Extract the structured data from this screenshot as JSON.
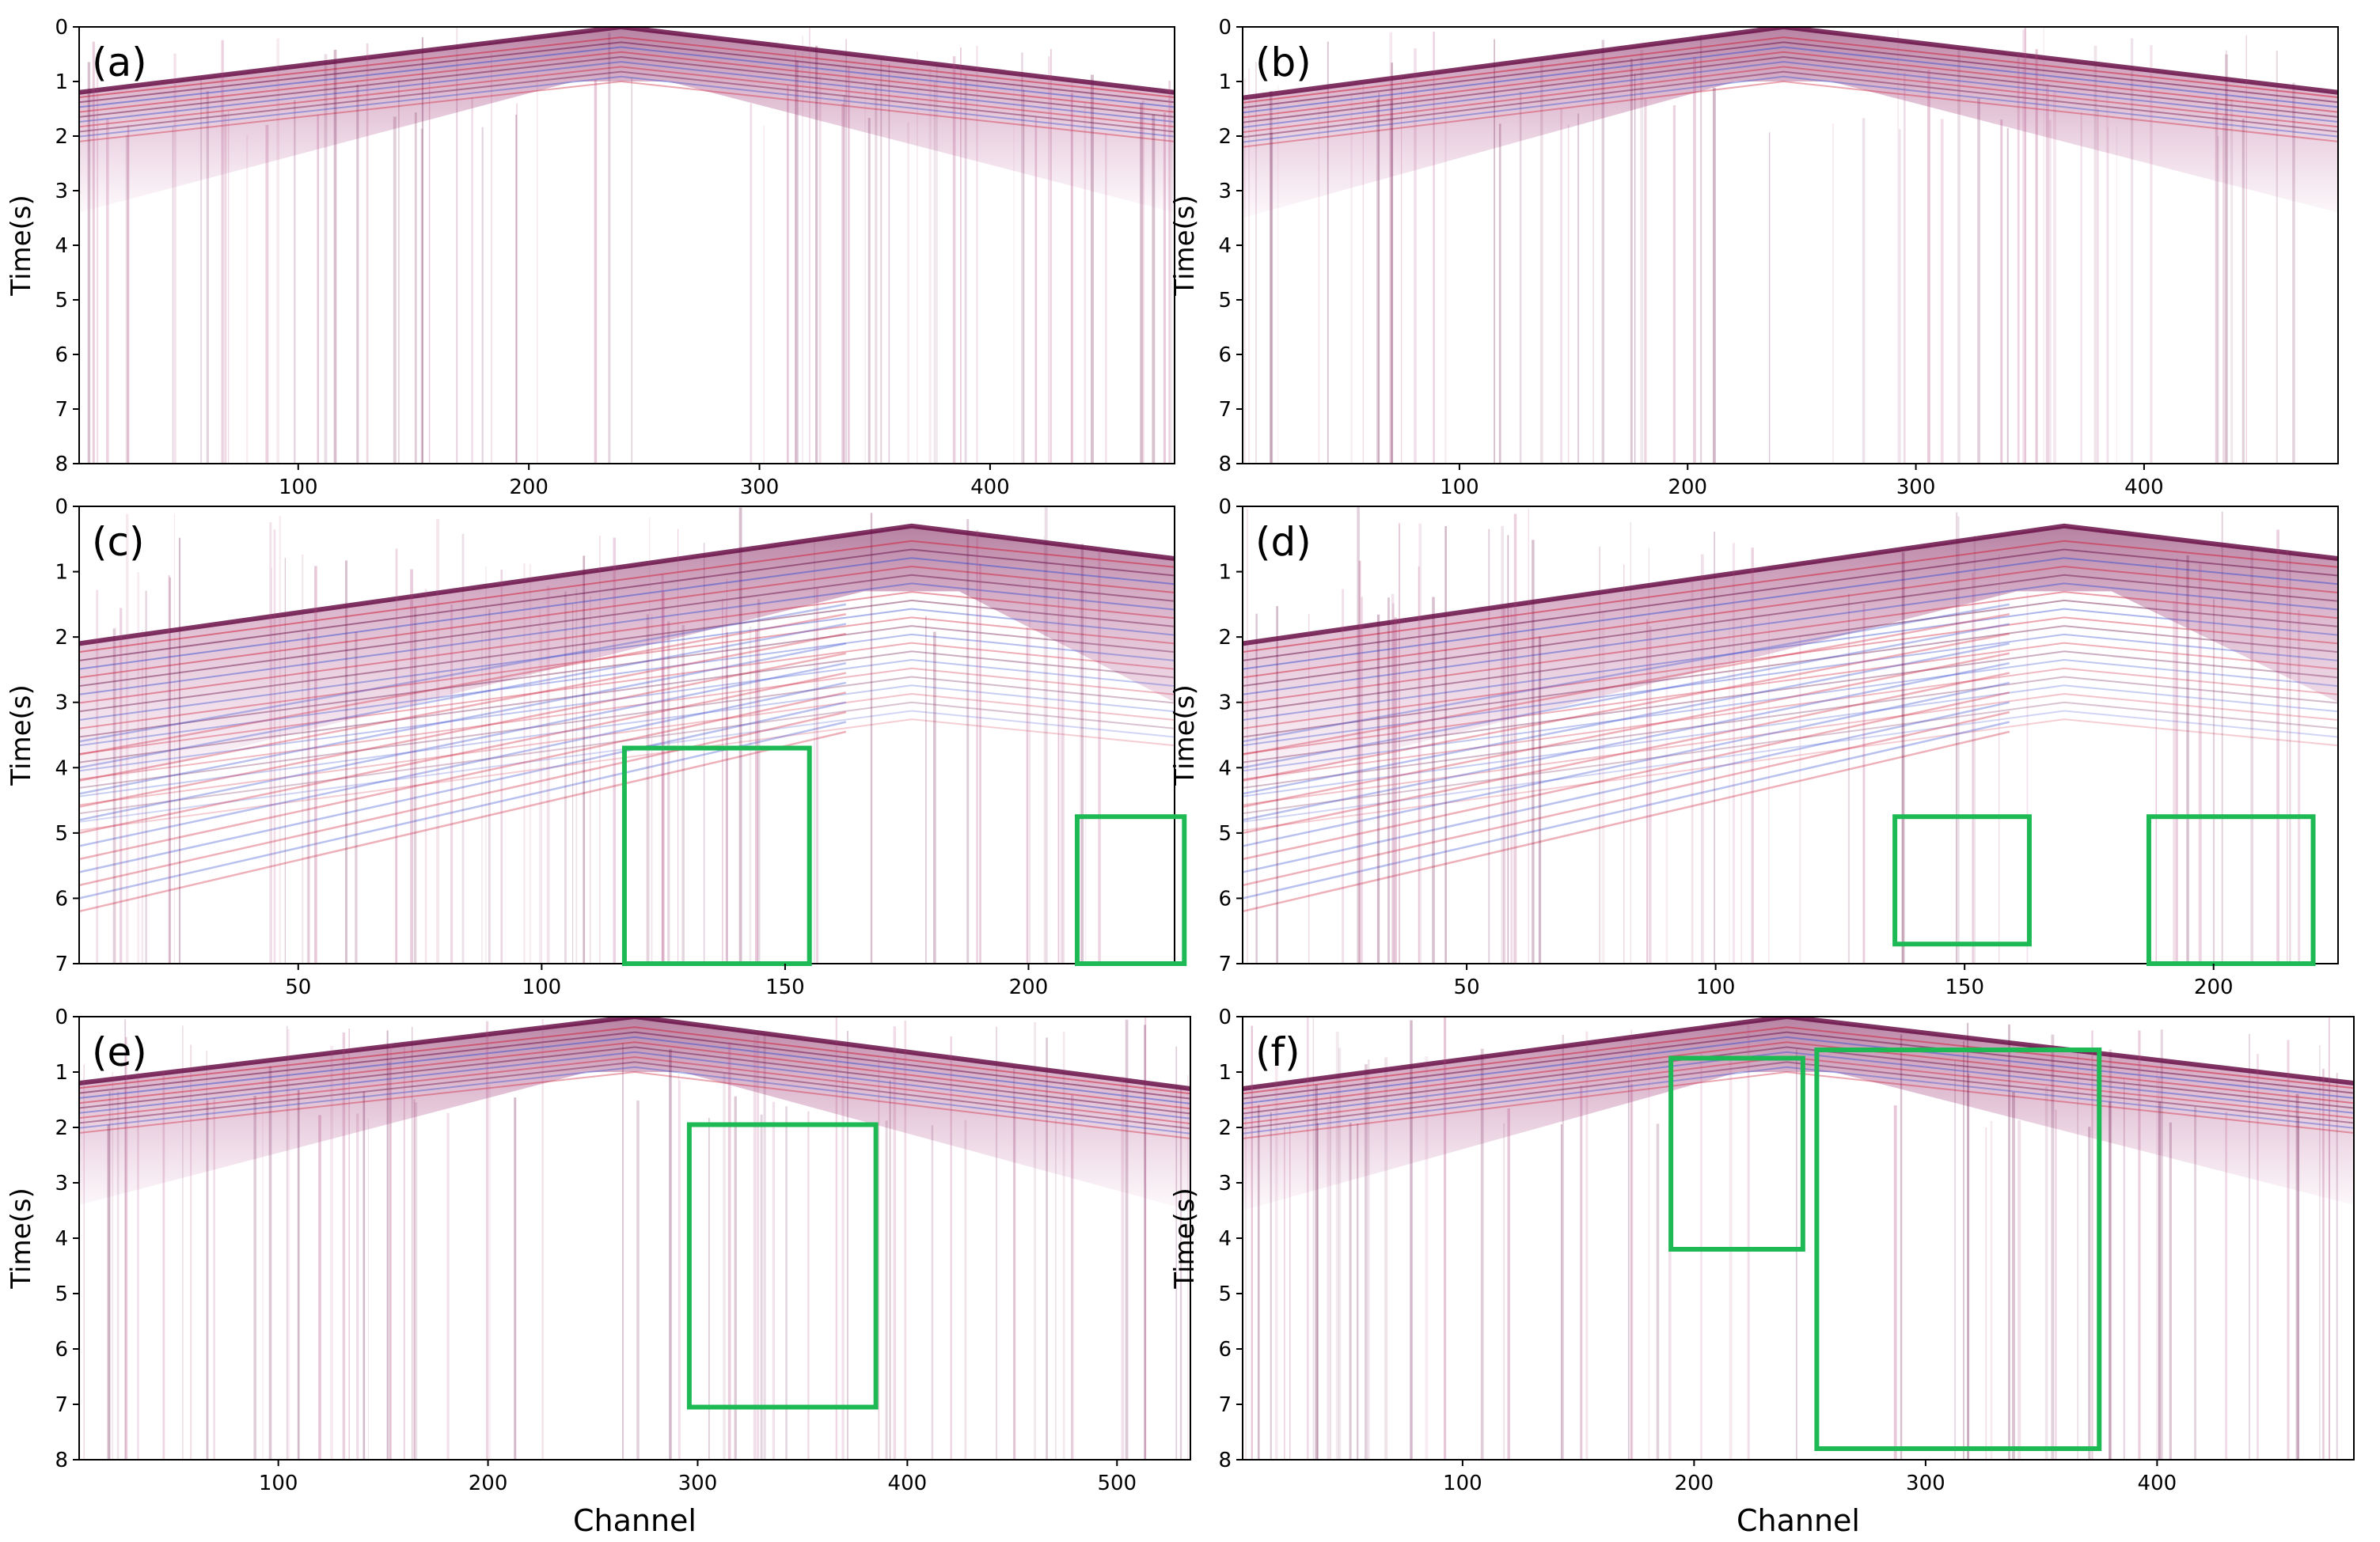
{
  "chart_data": [
    {
      "panel": "(a)",
      "type": "heatmap",
      "description_kind": "seismic shot gather",
      "ylabel": "Time(s)",
      "xlabel": "",
      "xlim": [
        5,
        480
      ],
      "ylim": [
        8,
        0
      ],
      "x_ticks": [
        100,
        200,
        300,
        400
      ],
      "y_ticks": [
        0,
        1,
        2,
        3,
        4,
        5,
        6,
        7,
        8
      ],
      "first_break_apex": {
        "channel": 240,
        "time": 0.0
      },
      "first_break_edges": [
        {
          "channel": 5,
          "time": 1.2
        },
        {
          "channel": 480,
          "time": 1.2
        }
      ],
      "highlight_boxes": []
    },
    {
      "panel": "(b)",
      "type": "heatmap",
      "ylabel": "Time(s)",
      "xlabel": "",
      "xlim": [
        5,
        485
      ],
      "ylim": [
        8,
        0
      ],
      "x_ticks": [
        100,
        200,
        300,
        400
      ],
      "y_ticks": [
        0,
        1,
        2,
        3,
        4,
        5,
        6,
        7,
        8
      ],
      "first_break_apex": {
        "channel": 242,
        "time": 0.0
      },
      "first_break_edges": [
        {
          "channel": 5,
          "time": 1.3
        },
        {
          "channel": 485,
          "time": 1.2
        }
      ],
      "highlight_boxes": []
    },
    {
      "panel": "(c)",
      "type": "heatmap",
      "ylabel": "Time(s)",
      "xlabel": "",
      "xlim": [
        5,
        230
      ],
      "ylim": [
        7,
        0
      ],
      "x_ticks": [
        50,
        100,
        150,
        200
      ],
      "y_ticks": [
        0,
        1,
        2,
        3,
        4,
        5,
        6,
        7
      ],
      "first_break_apex": {
        "channel": 176,
        "time": 0.3
      },
      "first_break_edges": [
        {
          "channel": 5,
          "time": 2.1
        },
        {
          "channel": 230,
          "time": 0.8
        }
      ],
      "highlight_boxes": [
        {
          "channel_range": [
            117,
            155
          ],
          "time_range": [
            3.7,
            7.0
          ]
        },
        {
          "channel_range": [
            210,
            232
          ],
          "time_range": [
            4.75,
            7.0
          ]
        }
      ]
    },
    {
      "panel": "(d)",
      "type": "heatmap",
      "ylabel": "Time(s)",
      "xlabel": "",
      "xlim": [
        5,
        225
      ],
      "ylim": [
        7,
        0
      ],
      "x_ticks": [
        50,
        100,
        150,
        200
      ],
      "y_ticks": [
        0,
        1,
        2,
        3,
        4,
        5,
        6,
        7
      ],
      "first_break_apex": {
        "channel": 170,
        "time": 0.3
      },
      "first_break_edges": [
        {
          "channel": 5,
          "time": 2.1
        },
        {
          "channel": 225,
          "time": 0.8
        }
      ],
      "highlight_boxes": [
        {
          "channel_range": [
            136,
            163
          ],
          "time_range": [
            4.75,
            6.7
          ]
        },
        {
          "channel_range": [
            187,
            220
          ],
          "time_range": [
            4.75,
            7.0
          ]
        }
      ]
    },
    {
      "panel": "(e)",
      "type": "heatmap",
      "ylabel": "Time(s)",
      "xlabel": "Channel",
      "xlim": [
        5,
        535
      ],
      "ylim": [
        8,
        0
      ],
      "x_ticks": [
        100,
        200,
        300,
        400,
        500
      ],
      "y_ticks": [
        0,
        1,
        2,
        3,
        4,
        5,
        6,
        7,
        8
      ],
      "first_break_apex": {
        "channel": 270,
        "time": 0.0
      },
      "first_break_edges": [
        {
          "channel": 5,
          "time": 1.2
        },
        {
          "channel": 535,
          "time": 1.3
        }
      ],
      "highlight_boxes": [
        {
          "channel_range": [
            296,
            385
          ],
          "time_range": [
            1.95,
            7.05
          ]
        }
      ]
    },
    {
      "panel": "(f)",
      "type": "heatmap",
      "ylabel": "Time(s)",
      "xlabel": "Channel",
      "xlim": [
        5,
        485
      ],
      "ylim": [
        8,
        0
      ],
      "x_ticks": [
        100,
        200,
        300,
        400
      ],
      "y_ticks": [
        0,
        1,
        2,
        3,
        4,
        5,
        6,
        7,
        8
      ],
      "first_break_apex": {
        "channel": 240,
        "time": 0.0
      },
      "first_break_edges": [
        {
          "channel": 5,
          "time": 1.3
        },
        {
          "channel": 485,
          "time": 1.2
        }
      ],
      "highlight_boxes": [
        {
          "channel_range": [
            190,
            247
          ],
          "time_range": [
            0.75,
            4.2
          ]
        },
        {
          "channel_range": [
            253,
            375
          ],
          "time_range": [
            0.6,
            7.8
          ]
        }
      ]
    }
  ],
  "colors": {
    "highlight_box": "#1db954",
    "seismic_dark": "#6a1048",
    "seismic_mid": "#b0447e",
    "seismic_red": "#d0203a",
    "seismic_blue": "#3a4fd0",
    "background": "#ffffff"
  }
}
